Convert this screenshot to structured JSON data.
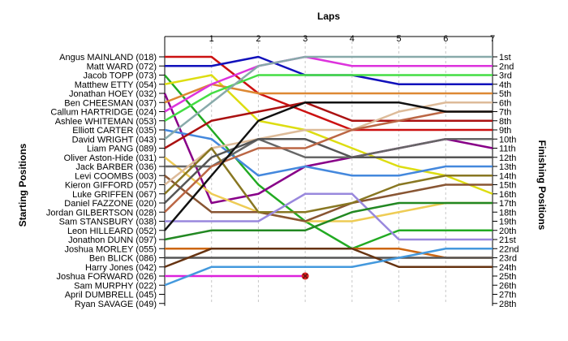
{
  "chart_data": {
    "type": "line",
    "title": "Laps",
    "ylabel_left": "Starting Positions",
    "ylabel_right": "Finishing Positions",
    "laps": [
      "1",
      "2",
      "3",
      "4",
      "5",
      "6",
      "7"
    ],
    "finishing_labels": [
      "1st",
      "2nd",
      "3rd",
      "4th",
      "5th",
      "6th",
      "7th",
      "8th",
      "9th",
      "10th",
      "11th",
      "12th",
      "13th",
      "14th",
      "15th",
      "16th",
      "17th",
      "18th",
      "19th",
      "20th",
      "21st",
      "22nd",
      "23rd",
      "24th",
      "25th",
      "26th",
      "27th",
      "28th"
    ],
    "grid": true,
    "retired_marker_color": "#dd2222",
    "drivers": [
      {
        "name": "Angus MAINLAND (018)",
        "color": "#cc1111",
        "positions": [
          1,
          1,
          5,
          7,
          9,
          9,
          9,
          9
        ]
      },
      {
        "name": "Matt WARD (072)",
        "color": "#1111bb",
        "positions": [
          2,
          2,
          1,
          3,
          3,
          4,
          4,
          4
        ]
      },
      {
        "name": "Jacob TOPP (073)",
        "color": "#22aa22",
        "positions": [
          3,
          9,
          15,
          19,
          22,
          20,
          20,
          20
        ]
      },
      {
        "name": "Matthew ETTY (054)",
        "color": "#dddd11",
        "positions": [
          4,
          3,
          8,
          9,
          11,
          13,
          14,
          16
        ]
      },
      {
        "name": "Jonathan HOEY (032)",
        "color": "#880088",
        "positions": [
          5,
          17,
          16,
          13,
          12,
          11,
          10,
          11
        ]
      },
      {
        "name": "Ben CHEESMAN (037)",
        "color": "#dd8833",
        "positions": [
          6,
          4,
          5,
          5,
          5,
          5,
          5,
          5
        ]
      },
      {
        "name": "Callum HARTRIDGE (024)",
        "color": "#dd33dd",
        "positions": [
          7,
          4,
          2,
          1,
          2,
          2,
          2,
          2
        ]
      },
      {
        "name": "Ashlee WHITEMAN (053)",
        "color": "#44dd44",
        "positions": [
          8,
          5,
          3,
          3,
          3,
          3,
          3,
          3
        ]
      },
      {
        "name": "Elliott CARTER (035)",
        "color": "#4488dd",
        "positions": [
          9,
          10,
          14,
          13,
          14,
          14,
          13,
          13
        ]
      },
      {
        "name": "David WRIGHT (043)",
        "color": "#88aaaa",
        "positions": [
          10,
          6,
          2,
          1,
          1,
          1,
          1,
          1
        ]
      },
      {
        "name": "Liam PANG (089)",
        "color": "#aa1111",
        "positions": [
          11,
          8,
          7,
          6,
          8,
          8,
          8,
          8
        ]
      },
      {
        "name": "Oliver Aston-Hide (031)",
        "color": "#eecc55",
        "positions": [
          12,
          16,
          18,
          19,
          19,
          18,
          17,
          17
        ]
      },
      {
        "name": "Jack BARBER (036)",
        "color": "#666666",
        "positions": [
          13,
          13,
          10,
          12,
          12,
          11,
          10,
          10
        ]
      },
      {
        "name": "Levi COOMBS (003)",
        "color": "#885533",
        "positions": [
          14,
          18,
          18,
          19,
          17,
          16,
          15,
          15
        ]
      },
      {
        "name": "Kieron GIFFORD (057)",
        "color": "#ddbb99",
        "positions": [
          15,
          11,
          10,
          9,
          9,
          7,
          6,
          6
        ]
      },
      {
        "name": "Luke GRIFFEN (067)",
        "color": "#887722",
        "positions": [
          16,
          11,
          18,
          18,
          17,
          15,
          14,
          14
        ]
      },
      {
        "name": "Daniel FAZZONE (020)",
        "color": "#555555",
        "positions": [
          17,
          12,
          10,
          10,
          12,
          12,
          12,
          12
        ]
      },
      {
        "name": "Jordan GILBERTSON (028)",
        "color": "#bb6644",
        "positions": [
          18,
          13,
          11,
          11,
          9,
          8,
          7,
          7
        ]
      },
      {
        "name": "Sam STANSBURY (038)",
        "color": "#9988dd",
        "positions": [
          19,
          19,
          19,
          16,
          16,
          21,
          21,
          21
        ]
      },
      {
        "name": "Leon HILLEARD (052)",
        "color": "#111111",
        "positions": [
          20,
          14,
          8,
          6,
          6,
          6,
          7,
          7
        ]
      },
      {
        "name": "Jonathon DUNN (097)",
        "color": "#228822",
        "positions": [
          21,
          20,
          20,
          20,
          18,
          17,
          17,
          17
        ]
      },
      {
        "name": "Joshua MORLEY (055)",
        "color": "#cc6611",
        "positions": [
          22,
          22,
          22,
          22,
          22,
          22,
          23,
          23
        ]
      },
      {
        "name": "Ben BLICK (086)",
        "color": "#555555",
        "positions": [
          23,
          23,
          23,
          23,
          23,
          23,
          23,
          23
        ]
      },
      {
        "name": "Harry Jones (042)",
        "color": "#663311",
        "positions": [
          24,
          22,
          22,
          22,
          22,
          24,
          24,
          24
        ]
      },
      {
        "name": "Joshua FORWARD (026)",
        "color": "#dd22dd",
        "positions": [
          25,
          25,
          25,
          25
        ],
        "retired": true
      },
      {
        "name": "Sam MURPHY (022)",
        "color": "#4499dd",
        "positions": [
          26,
          24,
          24,
          24,
          24,
          23,
          22,
          22
        ]
      },
      {
        "name": "April DUMBRELL (045)",
        "color": "#999999",
        "positions": []
      },
      {
        "name": "Ryan SAVAGE (049)",
        "color": "#999999",
        "positions": []
      }
    ]
  }
}
